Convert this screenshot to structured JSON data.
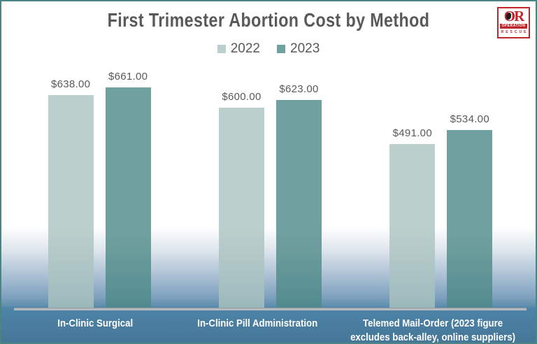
{
  "logo": {
    "monogram": "OR",
    "line1": "OPERATION",
    "line2": "RESCUE",
    "red": "#c0272d"
  },
  "chart_data": {
    "type": "bar",
    "title": "First Trimester Abortion Cost by Method",
    "categories": [
      "In-Clinic Surgical",
      "In-Clinic Pill Administration",
      "Telemed Mail-Order (2023 figure excludes back-alley, online suppliers)"
    ],
    "category_label_lines": [
      [
        "In-Clinic Surgical"
      ],
      [
        "In-Clinic Pill Administration"
      ],
      [
        "Telemed Mail-Order (2023 figure",
        "excludes back-alley, online suppliers)"
      ]
    ],
    "series": [
      {
        "name": "2022",
        "values": [
          638,
          600,
          491
        ],
        "value_labels": [
          "$638.00",
          "$600.00",
          "$491.00"
        ],
        "color": "rgba(170,195,191,0.8)",
        "swatch_hex": "#bccfcc"
      },
      {
        "name": "2023",
        "values": [
          661,
          623,
          534
        ],
        "value_labels": [
          "$661.00",
          "$623.00",
          "$534.00"
        ],
        "color": "rgba(77,137,135,0.8)",
        "swatch_hex": "#74a3a1"
      }
    ],
    "currency": "USD",
    "baseline": 0,
    "legend_position": "top",
    "grid": false,
    "y_axis_visible": false,
    "colors": {
      "title_text": "#595959",
      "value_label_text": "#595959",
      "category_label_text": "#ffffff",
      "axis_line": "#b2b9bf",
      "frame_border": "#4a8583",
      "background_bottom": "#4d84a8"
    }
  }
}
